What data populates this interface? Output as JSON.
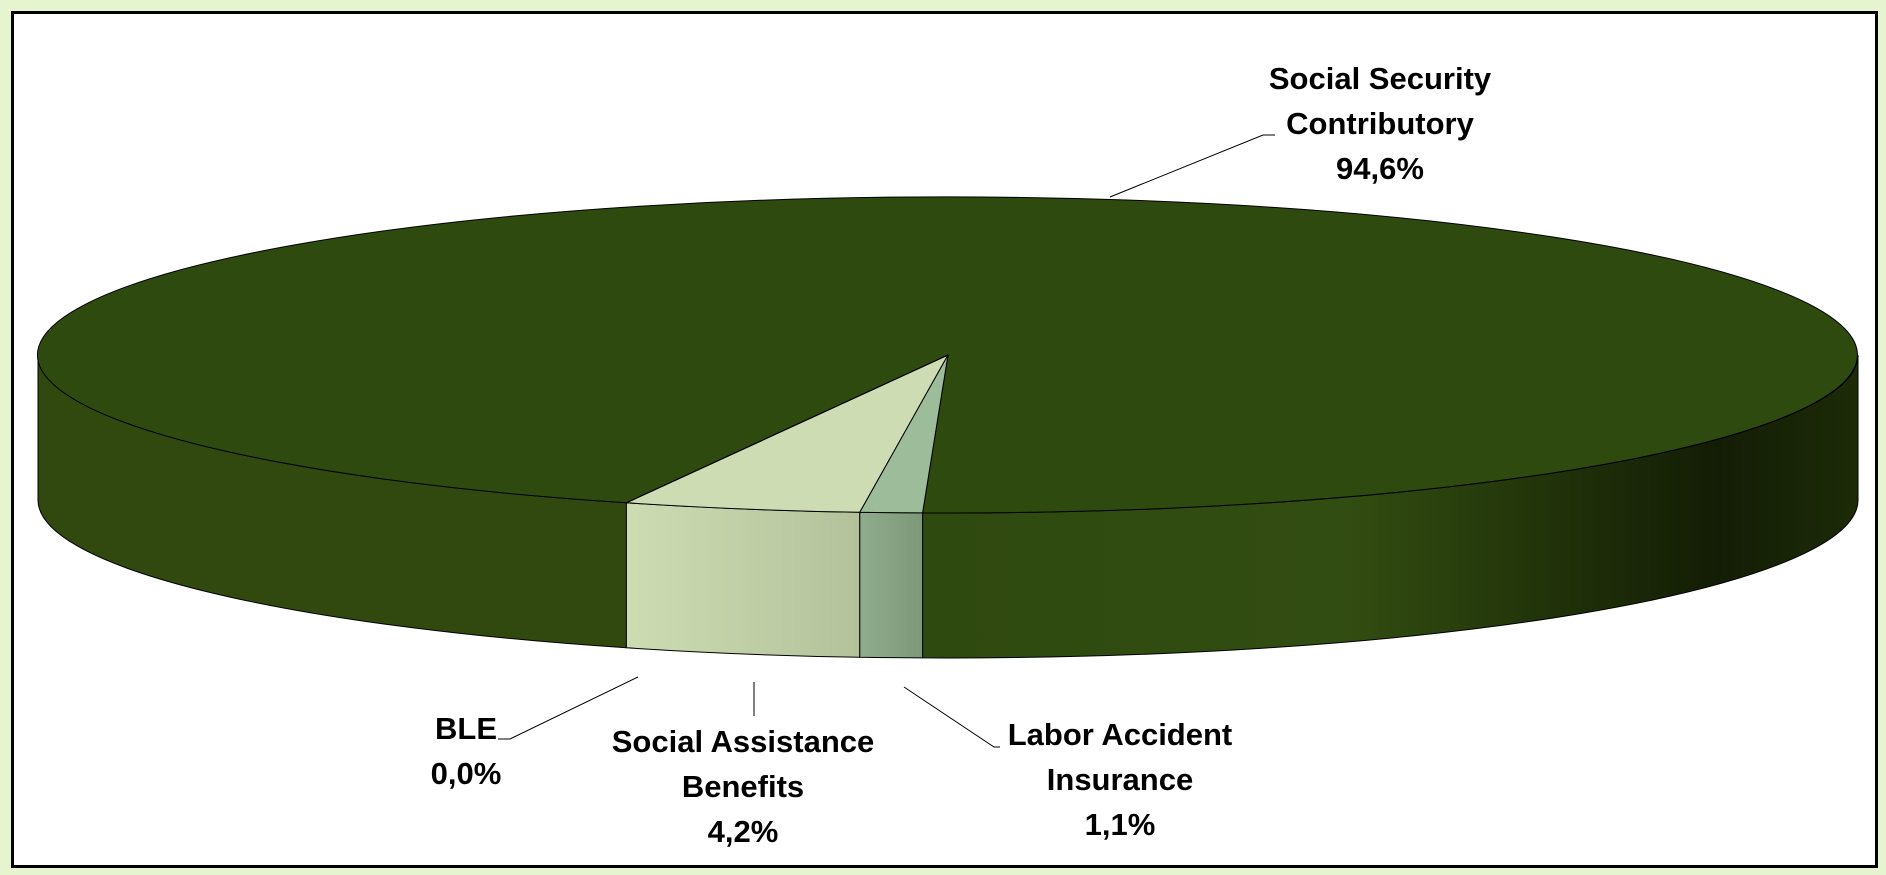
{
  "chart_data": {
    "type": "pie",
    "style": "3d",
    "title": "",
    "slices": [
      {
        "label_lines": [
          "Social Security",
          "Contributory"
        ],
        "value_text": "94,6%",
        "value": 94.6,
        "color": "#2f4a0f"
      },
      {
        "label_lines": [
          "Social Assistance",
          "Benefits"
        ],
        "value_text": "4,2%",
        "value": 4.2,
        "color": "#cddcb3"
      },
      {
        "label_lines": [
          "Labor Accident",
          "Insurance"
        ],
        "value_text": "1,1%",
        "value": 1.1,
        "color": "#9cbc9a"
      },
      {
        "label_lines": [
          "BLE"
        ],
        "value_text": "0,0%",
        "value": 0.0,
        "color": "#2f4a0f"
      }
    ],
    "legend": "none",
    "data_labels": "outside with leader lines"
  },
  "colors": {
    "page_background": "#e6f4cf",
    "chart_background": "#ffffff",
    "border": "#000000"
  }
}
